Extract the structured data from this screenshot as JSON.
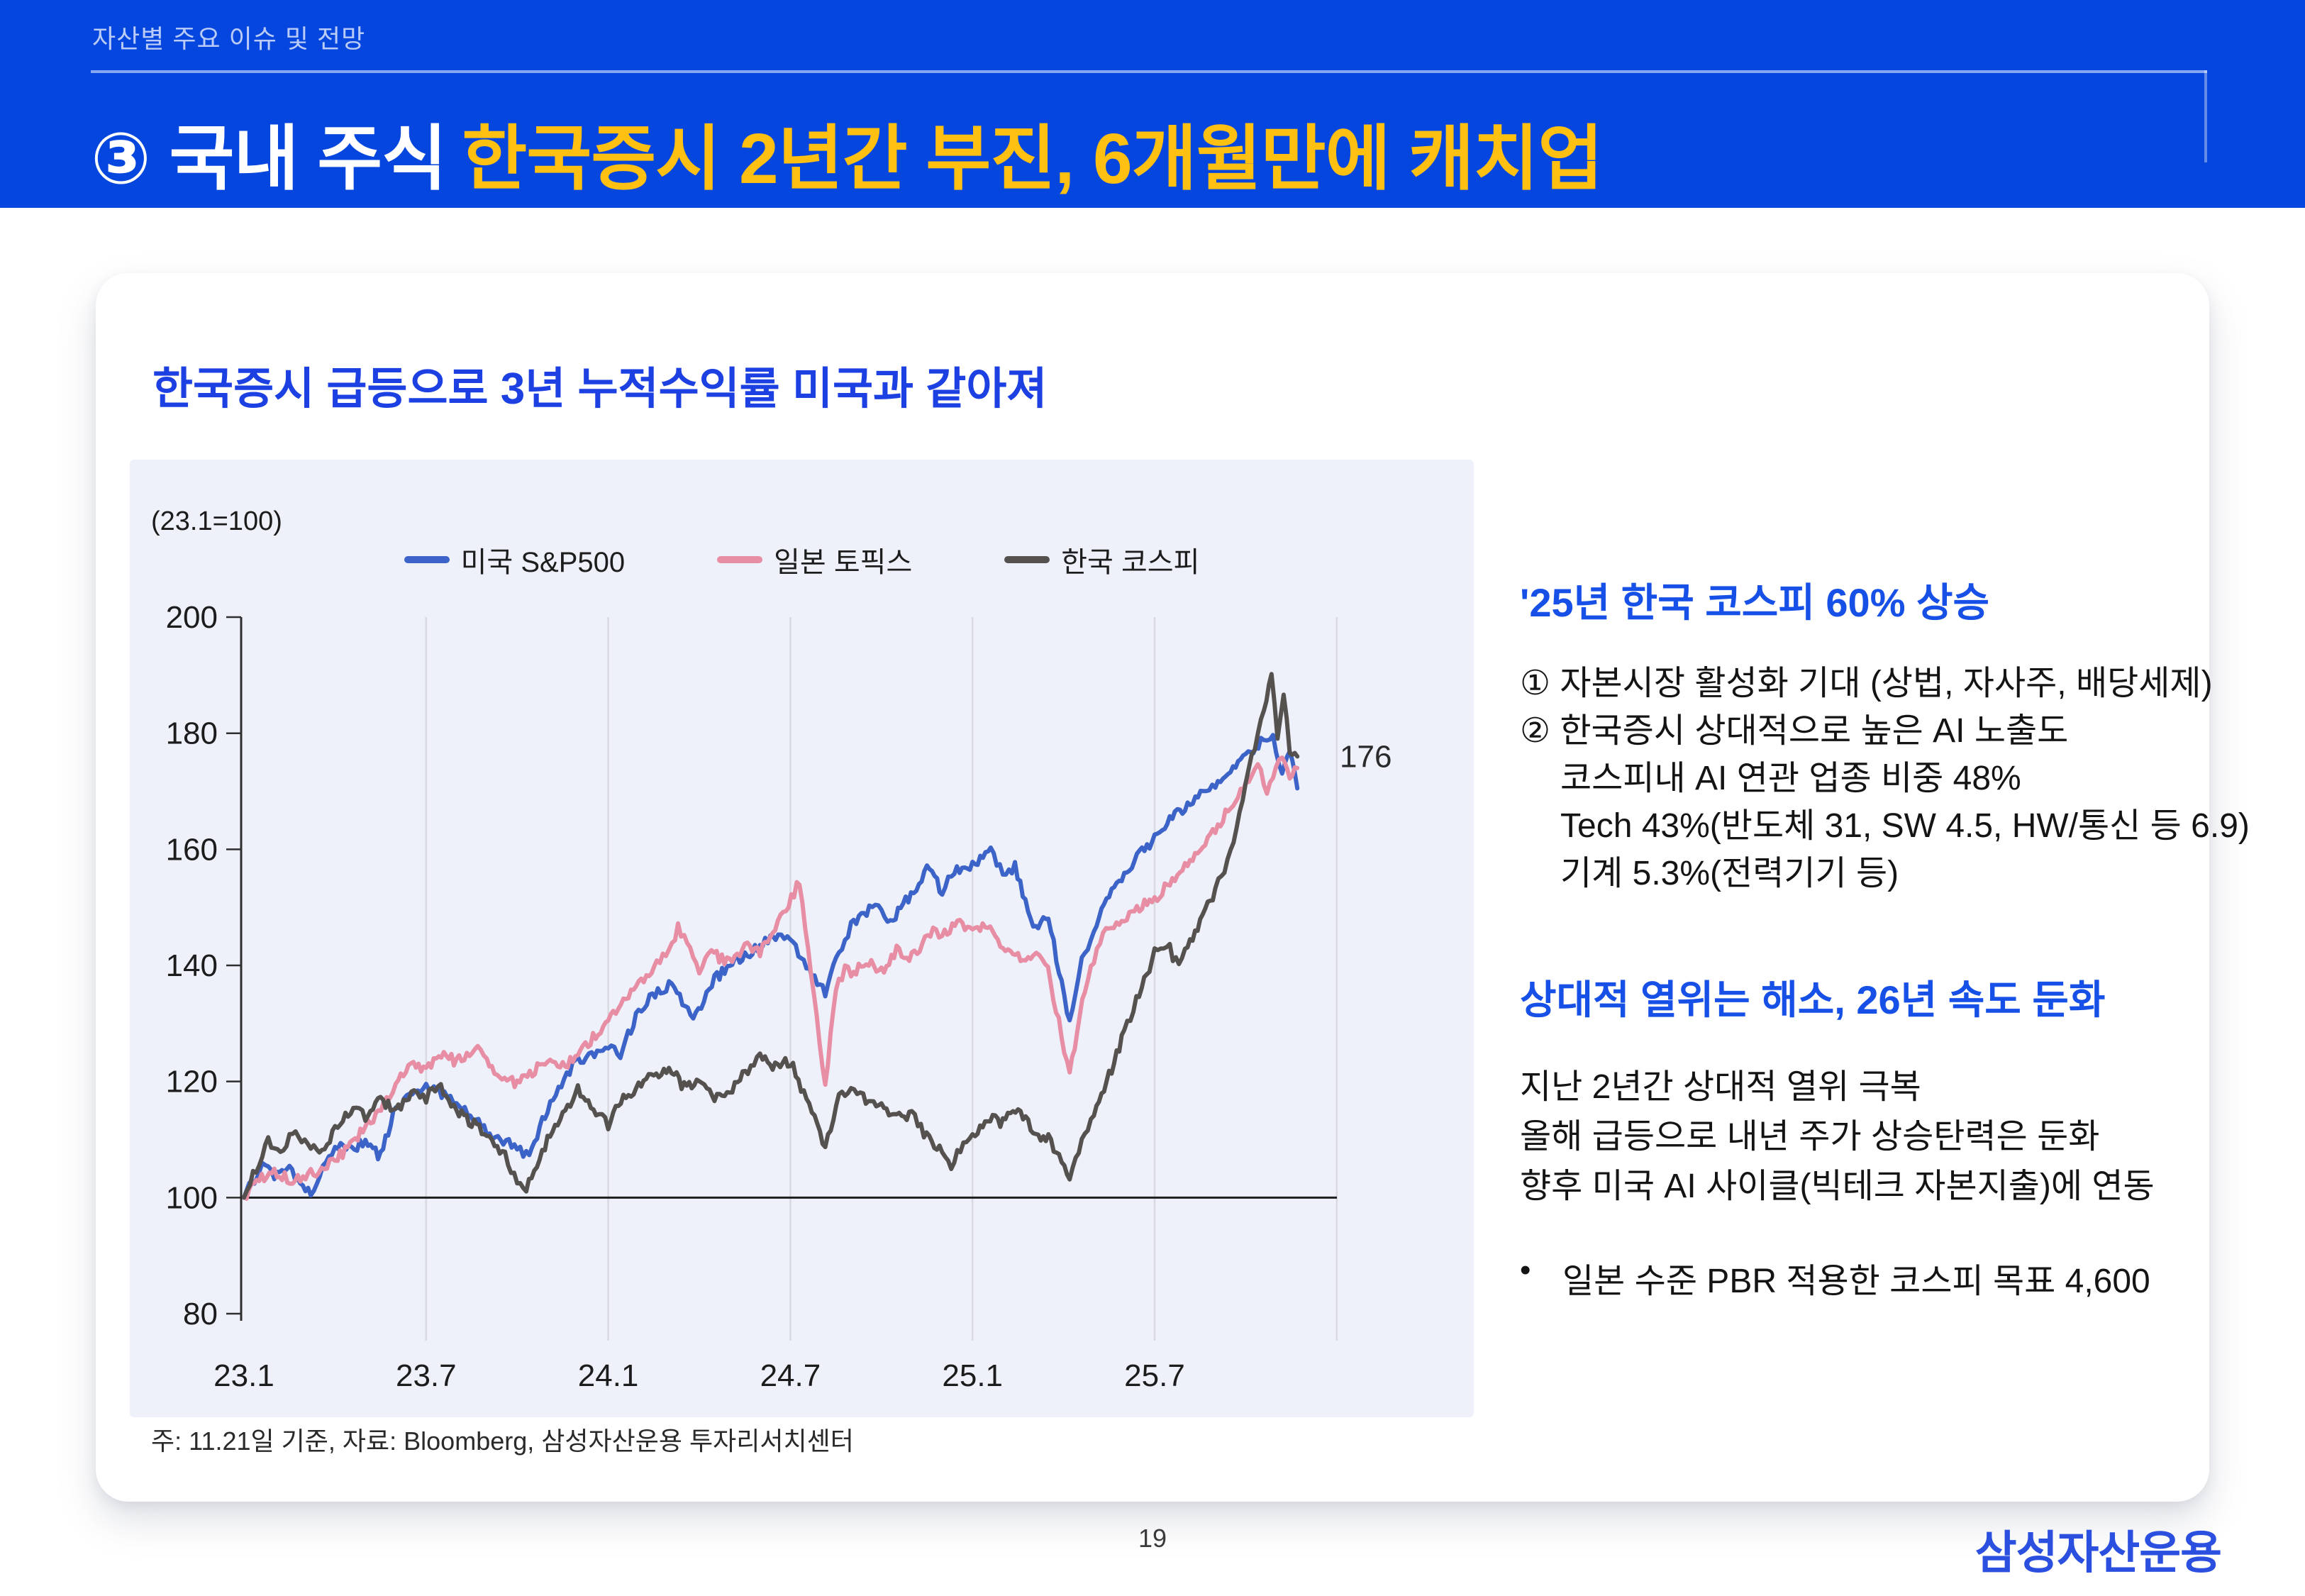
{
  "page": {
    "number": "19",
    "logo_text": "삼성자산운용"
  },
  "header": {
    "breadcrumb": "자산별 주요 이슈 및 전망",
    "title_main": "③ 국내 주식",
    "title_accent": "한국증시 2년간 부진, 6개월만에 캐치업",
    "colors": {
      "background": "#0446DE",
      "accent_text": "#FFC011"
    }
  },
  "card": {
    "title": "한국증시 급등으로 3년 누적수익률 미국과 같아져",
    "title_color": "#1C40E2"
  },
  "chart": {
    "unit_label": "(23.1=100)",
    "panel_color": "#EEF0FA",
    "note": "주: 11.21일 기준, 자료: Bloomberg, 삼성자산운용 투자리서치센터"
  },
  "chart_data": {
    "type": "line",
    "title": "한국증시 급등으로 3년 누적수익률 미국과 같아져",
    "index_base": "(23.1=100)",
    "x_unit": "months since 2023-01; tick labels are YY.M",
    "x_ticks": [
      {
        "m": 0,
        "label": "23.1"
      },
      {
        "m": 6,
        "label": "23.7"
      },
      {
        "m": 12,
        "label": "24.1"
      },
      {
        "m": 18,
        "label": "24.7"
      },
      {
        "m": 24,
        "label": "25.1"
      },
      {
        "m": 30,
        "label": "25.7"
      }
    ],
    "grid_months": [
      6,
      12,
      18,
      24,
      30,
      36
    ],
    "ylim": [
      80,
      200
    ],
    "y_ticks": [
      80,
      100,
      120,
      140,
      160,
      180,
      200
    ],
    "baseline_value": 100,
    "legend_position": "top",
    "annotation": {
      "text": "176",
      "value": 176,
      "series": "한국 코스피"
    },
    "series": [
      {
        "name": "미국 S&P500",
        "color": "#3C63C8",
        "points": [
          [
            0,
            100
          ],
          [
            0.6,
            105.5
          ],
          [
            1,
            103.5
          ],
          [
            1.5,
            105
          ],
          [
            2.2,
            100.8
          ],
          [
            2.6,
            105
          ],
          [
            3,
            108.3
          ],
          [
            4,
            109.2
          ],
          [
            4.5,
            107
          ],
          [
            5,
            115.5
          ],
          [
            6,
            119.5
          ],
          [
            6.6,
            117.5
          ],
          [
            7,
            116.5
          ],
          [
            8,
            111.3
          ],
          [
            9,
            108.8
          ],
          [
            9.4,
            107
          ],
          [
            10,
            115.5
          ],
          [
            11,
            123.8
          ],
          [
            12,
            126
          ],
          [
            12.4,
            124.5
          ],
          [
            13,
            132.5
          ],
          [
            14,
            136.8
          ],
          [
            14.8,
            131
          ],
          [
            15.5,
            137.5
          ],
          [
            16,
            140
          ],
          [
            16.5,
            141.5
          ],
          [
            17,
            143.5
          ],
          [
            17.6,
            145.5
          ],
          [
            18,
            144
          ],
          [
            19.15,
            135.5
          ],
          [
            19.6,
            142
          ],
          [
            20,
            147
          ],
          [
            20.6,
            149.5
          ],
          [
            21,
            150
          ],
          [
            21.3,
            147.5
          ],
          [
            21.8,
            151
          ],
          [
            22.5,
            156.5
          ],
          [
            23,
            153
          ],
          [
            23.4,
            156.5
          ],
          [
            24,
            157
          ],
          [
            24.6,
            159.8
          ],
          [
            25,
            155.8
          ],
          [
            25.4,
            157
          ],
          [
            26,
            146.5
          ],
          [
            26.5,
            148
          ],
          [
            27.2,
            130.5
          ],
          [
            27.6,
            141
          ],
          [
            28,
            146
          ],
          [
            28.5,
            152.5
          ],
          [
            29,
            156
          ],
          [
            29.5,
            159
          ],
          [
            30,
            162
          ],
          [
            30.5,
            165
          ],
          [
            31,
            167
          ],
          [
            31.6,
            170
          ],
          [
            32,
            171
          ],
          [
            32.5,
            174
          ],
          [
            33,
            176
          ],
          [
            33.5,
            178.5
          ],
          [
            33.9,
            179
          ],
          [
            34.2,
            173
          ],
          [
            34.45,
            177
          ],
          [
            34.7,
            170.5
          ]
        ]
      },
      {
        "name": "일본 토픽스",
        "color": "#E88EA4",
        "points": [
          [
            0,
            100
          ],
          [
            0.5,
            103
          ],
          [
            1,
            104.5
          ],
          [
            1.6,
            103
          ],
          [
            2.2,
            104
          ],
          [
            3,
            106.5
          ],
          [
            3.5,
            109
          ],
          [
            4,
            112
          ],
          [
            4.6,
            116
          ],
          [
            5,
            119.5
          ],
          [
            5.5,
            123
          ],
          [
            6,
            122
          ],
          [
            6.5,
            124.5
          ],
          [
            7,
            123.5
          ],
          [
            7.6,
            126
          ],
          [
            8,
            124
          ],
          [
            8.5,
            120.5
          ],
          [
            9,
            119.5
          ],
          [
            9.5,
            121.5
          ],
          [
            10,
            124
          ],
          [
            10.5,
            122.5
          ],
          [
            11,
            125
          ],
          [
            11.5,
            127.5
          ],
          [
            12,
            130
          ],
          [
            12.5,
            134
          ],
          [
            13,
            136.5
          ],
          [
            13.6,
            140
          ],
          [
            14,
            142.5
          ],
          [
            14.3,
            146.5
          ],
          [
            14.7,
            142.5
          ],
          [
            15,
            139.5
          ],
          [
            15.4,
            142
          ],
          [
            16,
            140.5
          ],
          [
            16.5,
            143.5
          ],
          [
            17,
            142.5
          ],
          [
            17.5,
            146
          ],
          [
            18.3,
            154.5
          ],
          [
            19.15,
            119.5
          ],
          [
            19.5,
            136
          ],
          [
            19.8,
            139.5
          ],
          [
            20,
            138.5
          ],
          [
            20.5,
            141
          ],
          [
            21,
            139
          ],
          [
            21.5,
            142.5
          ],
          [
            22,
            141.5
          ],
          [
            22.7,
            146
          ],
          [
            23,
            145.5
          ],
          [
            23.5,
            147.5
          ],
          [
            24,
            146
          ],
          [
            24.5,
            147
          ],
          [
            25,
            143.5
          ],
          [
            25.5,
            141.5
          ],
          [
            26,
            142
          ],
          [
            26.4,
            141
          ],
          [
            27.2,
            121.5
          ],
          [
            27.7,
            136
          ],
          [
            28,
            141
          ],
          [
            28.4,
            146
          ],
          [
            29,
            147.5
          ],
          [
            29.5,
            150
          ],
          [
            30,
            151.5
          ],
          [
            30.5,
            154
          ],
          [
            31,
            157.5
          ],
          [
            31.5,
            160
          ],
          [
            32,
            163.5
          ],
          [
            32.5,
            167.5
          ],
          [
            33,
            171.5
          ],
          [
            33.4,
            174.5
          ],
          [
            33.7,
            170
          ],
          [
            34,
            174.5
          ],
          [
            34.2,
            176
          ],
          [
            34.45,
            171.5
          ],
          [
            34.7,
            174
          ]
        ]
      },
      {
        "name": "한국 코스피",
        "color": "#55514E",
        "points": [
          [
            0,
            100
          ],
          [
            0.4,
            105
          ],
          [
            0.8,
            109.5
          ],
          [
            1.2,
            108
          ],
          [
            1.6,
            111
          ],
          [
            2,
            110
          ],
          [
            2.4,
            107.5
          ],
          [
            3,
            111.5
          ],
          [
            3.6,
            115.5
          ],
          [
            4,
            114
          ],
          [
            4.5,
            117
          ],
          [
            5,
            115
          ],
          [
            5.6,
            118.5
          ],
          [
            6,
            117
          ],
          [
            6.4,
            119.5
          ],
          [
            7,
            115
          ],
          [
            7.5,
            113
          ],
          [
            8,
            110.5
          ],
          [
            8.6,
            107
          ],
          [
            9,
            103
          ],
          [
            9.3,
            101.8
          ],
          [
            10,
            110
          ],
          [
            10.5,
            114
          ],
          [
            11,
            118.5
          ],
          [
            11.6,
            115
          ],
          [
            12,
            112.5
          ],
          [
            12.5,
            117.5
          ],
          [
            13,
            119
          ],
          [
            13.5,
            121
          ],
          [
            14,
            122.5
          ],
          [
            14.5,
            119
          ],
          [
            15,
            120.5
          ],
          [
            15.5,
            117
          ],
          [
            16,
            118.5
          ],
          [
            16.6,
            122
          ],
          [
            17,
            124.5
          ],
          [
            17.5,
            122.5
          ],
          [
            18,
            123.5
          ],
          [
            19.15,
            109
          ],
          [
            19.6,
            117
          ],
          [
            20,
            119.5
          ],
          [
            20.4,
            117
          ],
          [
            21,
            115.5
          ],
          [
            21.5,
            113.5
          ],
          [
            22,
            114.5
          ],
          [
            22.4,
            111
          ],
          [
            23,
            108
          ],
          [
            23.3,
            105.8
          ],
          [
            23.7,
            109
          ],
          [
            24,
            110.5
          ],
          [
            24.5,
            113.5
          ],
          [
            25,
            113
          ],
          [
            25.5,
            115
          ],
          [
            26,
            111.5
          ],
          [
            26.5,
            110
          ],
          [
            27.2,
            104
          ],
          [
            27.6,
            110
          ],
          [
            28,
            114
          ],
          [
            28.5,
            121
          ],
          [
            29,
            128.5
          ],
          [
            29.4,
            134
          ],
          [
            30,
            142
          ],
          [
            30.4,
            144
          ],
          [
            30.7,
            140.5
          ],
          [
            31,
            142.5
          ],
          [
            31.5,
            147.5
          ],
          [
            32,
            153
          ],
          [
            32.4,
            158
          ],
          [
            32.8,
            166
          ],
          [
            33,
            172
          ],
          [
            33.3,
            178
          ],
          [
            33.6,
            184
          ],
          [
            33.85,
            189.5
          ],
          [
            34.05,
            179
          ],
          [
            34.25,
            186.5
          ],
          [
            34.45,
            177
          ],
          [
            34.7,
            176
          ]
        ]
      }
    ]
  },
  "right_column": {
    "heading_color": "#1750E6",
    "bullet_char": "•",
    "sections": [
      {
        "heading": "'25년 한국 코스피 60% 상승",
        "lines": [
          {
            "text": "① 자본시장 활성화 기대 (상법, 자사주, 배당세제)",
            "indent": false
          },
          {
            "text": "② 한국증시 상대적으로 높은 AI 노출도",
            "indent": false
          },
          {
            "text": "코스피내 AI 연관 업종 비중 48%",
            "indent": true
          },
          {
            "text": "Tech 43%(반도체 31, SW 4.5, HW/통신 등 6.9)",
            "indent": true
          },
          {
            "text": "기계 5.3%(전력기기 등)",
            "indent": true
          }
        ]
      },
      {
        "heading": "상대적 열위는 해소, 26년 속도 둔화",
        "lines": [
          {
            "text": "지난 2년간 상대적 열위 극복"
          },
          {
            "text": "올해 급등으로 내년 주가 상승탄력은 둔화"
          },
          {
            "text": "향후 미국 AI 사이클(빅테크 자본지출)에 연동"
          }
        ],
        "bullet": "일본 수준 PBR 적용한 코스피 목표 4,600"
      }
    ]
  },
  "footnote": "주: 11.21일 기준, 자료: Bloomberg, 삼성자산운용 투자리서치센터"
}
